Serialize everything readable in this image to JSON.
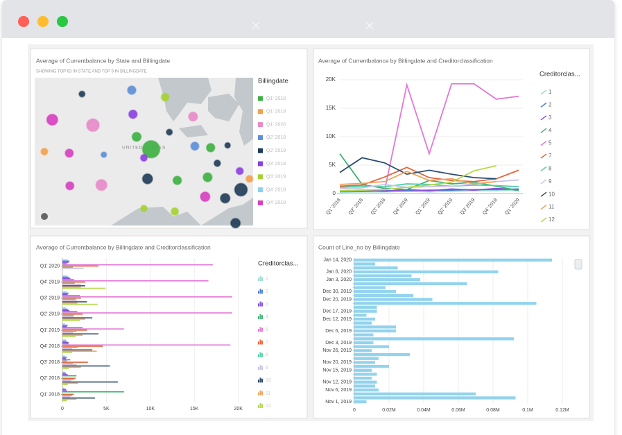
{
  "chart_data": [
    {
      "type": "bubble_map",
      "title": "Average of Currentbalance by State and Billingdate",
      "subtitle": "SHOWING TOP 63 IN STATE AND TOP 9 IN BILLINGDATE",
      "map_label": "UNITED STATES",
      "legend_title": "Billingdate",
      "legend": [
        {
          "name": "Q1' 2018",
          "color": "#3cb043"
        },
        {
          "name": "Q1' 2019",
          "color": "#f5a04a"
        },
        {
          "name": "Q1' 2020",
          "color": "#e88ac8"
        },
        {
          "name": "Q2' 2018",
          "color": "#5b8fd6"
        },
        {
          "name": "Q2' 2019",
          "color": "#1f3b57"
        },
        {
          "name": "Q3' 2018",
          "color": "#8b3fe0"
        },
        {
          "name": "Q3' 2019",
          "color": "#a4d233"
        },
        {
          "name": "Q4' 2018",
          "color": "#8fd0ee"
        },
        {
          "name": "Q4' 2019",
          "color": "#d63fc0"
        }
      ],
      "points": [
        {
          "lon": -98.2,
          "lat": 46.9,
          "value": 3500,
          "color": "#1f3b57"
        },
        {
          "lon": -90.0,
          "lat": 47.4,
          "value": 7000,
          "color": "#5b8fd6"
        },
        {
          "lon": -84.5,
          "lat": 46.5,
          "value": 6000,
          "color": "#a4d233"
        },
        {
          "lon": -103.1,
          "lat": 43.6,
          "value": 12000,
          "color": "#d63fc0"
        },
        {
          "lon": -96.4,
          "lat": 42.9,
          "value": 16000,
          "color": "#e88ac8"
        },
        {
          "lon": -89.8,
          "lat": 44.3,
          "value": 7000,
          "color": "#8b3fe0"
        },
        {
          "lon": -79.9,
          "lat": 44.0,
          "value": 8000,
          "color": "#e88ac8"
        },
        {
          "lon": -83.8,
          "lat": 42.0,
          "value": 3500,
          "color": "#1f3b57"
        },
        {
          "lon": -89.2,
          "lat": 41.4,
          "value": 8000,
          "color": "#3cb043"
        },
        {
          "lon": -86.8,
          "lat": 39.8,
          "value": 30000,
          "color": "#3cb043"
        },
        {
          "lon": -104.4,
          "lat": 39.5,
          "value": 4500,
          "color": "#f5a04a"
        },
        {
          "lon": -100.3,
          "lat": 39.3,
          "value": 6500,
          "color": "#d63fc0"
        },
        {
          "lon": -94.6,
          "lat": 39.1,
          "value": 3000,
          "color": "#5b8fd6"
        },
        {
          "lon": -88.0,
          "lat": 38.7,
          "value": 4500,
          "color": "#8b3fe0"
        },
        {
          "lon": -79.6,
          "lat": 40.2,
          "value": 6500,
          "color": "#5b8fd6"
        },
        {
          "lon": -77.0,
          "lat": 40.0,
          "value": 7000,
          "color": "#3cb043"
        },
        {
          "lon": -74.2,
          "lat": 40.3,
          "value": 3000,
          "color": "#1f3b57"
        },
        {
          "lon": -75.9,
          "lat": 38.0,
          "value": 4000,
          "color": "#1f3b57"
        },
        {
          "lon": -72.2,
          "lat": 37.0,
          "value": 5000,
          "color": "#8b3fe0"
        },
        {
          "lon": -100.2,
          "lat": 35.1,
          "value": 6500,
          "color": "#d63fc0"
        },
        {
          "lon": -95.0,
          "lat": 35.2,
          "value": 12000,
          "color": "#e88ac8"
        },
        {
          "lon": -87.4,
          "lat": 36.0,
          "value": 10000,
          "color": "#1f3b57"
        },
        {
          "lon": -82.5,
          "lat": 35.8,
          "value": 7000,
          "color": "#3cb043"
        },
        {
          "lon": -77.5,
          "lat": 36.2,
          "value": 8000,
          "color": "#3cb043"
        },
        {
          "lon": -77.9,
          "lat": 33.7,
          "value": 9000,
          "color": "#d63fc0"
        },
        {
          "lon": -74.6,
          "lat": 33.5,
          "value": 9000,
          "color": "#1f3b57"
        },
        {
          "lon": -72.0,
          "lat": 34.6,
          "value": 16000,
          "color": "#1f3b57"
        },
        {
          "lon": -70.6,
          "lat": 36.0,
          "value": 4500,
          "color": "#f5a04a"
        },
        {
          "lon": -88.0,
          "lat": 32.2,
          "value": 4000,
          "color": "#a4d233"
        },
        {
          "lon": -82.9,
          "lat": 31.8,
          "value": 5500,
          "color": "#a4d233"
        },
        {
          "lon": -72.9,
          "lat": 30.3,
          "value": 9000,
          "color": "#1f3b57"
        }
      ]
    },
    {
      "type": "line",
      "title": "Average of Currentbalance by Billingdate and Creditorclassification",
      "legend_title": "Creditorclas...",
      "categories": [
        "Q1' 2018",
        "Q2' 2018",
        "Q3' 2018",
        "Q4' 2018",
        "Q1' 2019",
        "Q2' 2019",
        "Q3' 2019",
        "Q4' 2019",
        "Q1' 2020"
      ],
      "ylim": [
        0,
        20000
      ],
      "yticks": [
        0,
        {
          "value": 5000,
          "label": "5K"
        },
        {
          "value": 10000,
          "label": "10K"
        },
        {
          "value": 15000,
          "label": "15K"
        },
        {
          "value": 20000,
          "label": "20K"
        }
      ],
      "grid": true,
      "series": [
        {
          "name": "1",
          "color": "#9fdcd2",
          "values": [
            200,
            300,
            300,
            400,
            300,
            400,
            500,
            500,
            600
          ]
        },
        {
          "name": "2",
          "color": "#4a7fd4",
          "values": [
            400,
            400,
            500,
            500,
            600,
            600,
            700,
            700,
            800
          ]
        },
        {
          "name": "3",
          "color": "#8a4fe0",
          "values": [
            500,
            600,
            400,
            700,
            500,
            800,
            600,
            900,
            700
          ]
        },
        {
          "name": "4",
          "color": "#3cb371",
          "values": [
            7000,
            1600,
            900,
            700,
            2300,
            1700,
            2000,
            1300,
            500
          ]
        },
        {
          "name": "5",
          "color": "#e377d6",
          "values": [
            null,
            null,
            500,
            19100,
            7000,
            19300,
            19300,
            16600,
            17100
          ]
        },
        {
          "name": "7",
          "color": "#e8643a",
          "values": [
            1300,
            1500,
            2900,
            4600,
            2800,
            2300,
            2100,
            2600,
            4100
          ]
        },
        {
          "name": "8",
          "color": "#4fd1a5",
          "values": [
            1100,
            1300,
            1200,
            1700,
            1600,
            1300,
            1500,
            1400,
            1200
          ]
        },
        {
          "name": "9",
          "color": "#c9c3ea",
          "values": [
            900,
            1000,
            1600,
            1100,
            1200,
            1300,
            1700,
            2100,
            2400
          ]
        },
        {
          "name": "10",
          "color": "#2b4c6f",
          "values": [
            3700,
            6300,
            5400,
            3400,
            4100,
            3400,
            2800,
            2600,
            null
          ]
        },
        {
          "name": "11",
          "color": "#f3a35c",
          "values": [
            1600,
            1800,
            2100,
            3900,
            2300,
            2600,
            1700,
            2100,
            null
          ]
        },
        {
          "name": "12",
          "color": "#b5d94a",
          "values": [
            500,
            600,
            700,
            1100,
            1500,
            2000,
            4000,
            4900,
            null
          ]
        }
      ]
    },
    {
      "type": "bar",
      "orientation": "horizontal",
      "title": "Average of Currentbalance by Billingdate and Creditorclassification",
      "legend_title": "Creditorclas...",
      "categories": [
        "Q1' 2018",
        "Q2' 2018",
        "Q3' 2018",
        "Q4' 2018",
        "Q1' 2019",
        "Q2' 2019",
        "Q3' 2019",
        "Q4' 2019",
        "Q1' 2020"
      ],
      "xlim": [
        0,
        20500
      ],
      "xticks": [
        0,
        {
          "value": 5000,
          "label": "5K"
        },
        {
          "value": 10000,
          "label": "10K"
        },
        {
          "value": 15000,
          "label": "15K"
        },
        {
          "value": 20000,
          "label": "20K"
        }
      ],
      "grid": true,
      "series": [
        {
          "name": "1",
          "color": "#9fdcd2",
          "values": [
            200,
            300,
            300,
            400,
            300,
            400,
            500,
            500,
            600
          ]
        },
        {
          "name": "2",
          "color": "#4a7fd4",
          "values": [
            400,
            400,
            500,
            500,
            600,
            600,
            700,
            700,
            800
          ]
        },
        {
          "name": "3",
          "color": "#8a4fe0",
          "values": [
            500,
            600,
            400,
            700,
            500,
            800,
            600,
            900,
            700
          ]
        },
        {
          "name": "4",
          "color": "#3cb371",
          "values": [
            7000,
            1600,
            900,
            700,
            2300,
            1700,
            2000,
            1300,
            500
          ]
        },
        {
          "name": "5",
          "color": "#e377d6",
          "values": [
            null,
            null,
            500,
            19100,
            7000,
            19300,
            19300,
            16600,
            17100
          ]
        },
        {
          "name": "7",
          "color": "#e8643a",
          "values": [
            1300,
            1500,
            2900,
            4600,
            2800,
            2300,
            2100,
            2600,
            4100
          ]
        },
        {
          "name": "8",
          "color": "#4fd1a5",
          "values": [
            1100,
            1300,
            1200,
            1700,
            1600,
            1300,
            1500,
            1400,
            1200
          ]
        },
        {
          "name": "9",
          "color": "#c9c3ea",
          "values": [
            900,
            1000,
            1600,
            1100,
            1200,
            1300,
            1700,
            2100,
            2400
          ]
        },
        {
          "name": "10",
          "color": "#2b4c6f",
          "values": [
            3700,
            6300,
            5400,
            3400,
            4100,
            3400,
            2800,
            2600,
            null
          ]
        },
        {
          "name": "11",
          "color": "#f3a35c",
          "values": [
            1600,
            1800,
            2100,
            3900,
            2300,
            2600,
            1700,
            2100,
            null
          ]
        },
        {
          "name": "12",
          "color": "#b5d94a",
          "values": [
            500,
            600,
            700,
            1100,
            1500,
            2000,
            4000,
            4900,
            null
          ]
        }
      ]
    },
    {
      "type": "bar",
      "orientation": "horizontal",
      "title": "Count of Line_no by Billingdate",
      "color": "#92d3ee",
      "categories": [
        "Jan 14, 2020",
        null,
        null,
        "Jan 8, 2020",
        null,
        "Jan 3, 2020",
        null,
        null,
        "Dec 30, 2019",
        null,
        "Dec 20, 2019",
        null,
        null,
        "Dec 17, 2019",
        null,
        "Dec 12, 2019",
        null,
        null,
        "Dec 6, 2019",
        null,
        null,
        "Dec 3, 2019",
        null,
        "Nov 26, 2019",
        null,
        null,
        "Nov 20, 2019",
        null,
        "Nov 15, 2019",
        null,
        null,
        "Nov 12, 2019",
        null,
        "Nov 6, 2019",
        null,
        null,
        "Nov 1, 2019"
      ],
      "values": [
        114000,
        12000,
        25000,
        83000,
        33000,
        38000,
        65000,
        18000,
        24000,
        34000,
        45000,
        105000,
        13000,
        13000,
        7000,
        12000,
        10000,
        24000,
        24000,
        11000,
        92000,
        11000,
        20000,
        10000,
        32000,
        14000,
        12000,
        20000,
        10000,
        13000,
        10000,
        13000,
        12000,
        14000,
        70000,
        93000,
        7000
      ],
      "xlim": [
        0,
        128000
      ],
      "xticks": [
        0,
        {
          "value": 20000,
          "label": "0.02M"
        },
        {
          "value": 40000,
          "label": "0.04M"
        },
        {
          "value": 60000,
          "label": "0.06M"
        },
        {
          "value": 80000,
          "label": "0.08M"
        },
        {
          "value": 100000,
          "label": "0.1M"
        },
        {
          "value": 120000,
          "label": "0.12M"
        }
      ],
      "grid": true
    }
  ]
}
